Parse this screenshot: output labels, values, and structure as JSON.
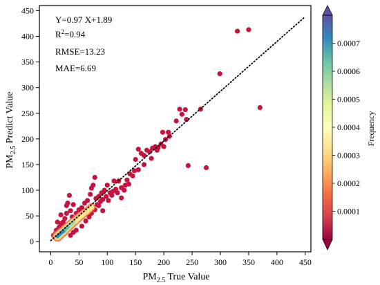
{
  "chart_data": {
    "type": "scatter",
    "xlabel": {
      "base": "PM",
      "sub": "2.5",
      "rest": " True Value"
    },
    "ylabel": {
      "base": "PM",
      "sub": "2.5",
      "rest": " Predict Value"
    },
    "xlim": [
      -20,
      460
    ],
    "ylim": [
      -20,
      460
    ],
    "xticks": [
      "0",
      "50",
      "100",
      "150",
      "200",
      "250",
      "300",
      "350",
      "400",
      "450"
    ],
    "yticks": [
      "0",
      "50",
      "100",
      "150",
      "200",
      "250",
      "300",
      "350",
      "400",
      "450"
    ],
    "annotations": {
      "equation": "Y=0.97 X+1.89",
      "r2_base": "R",
      "r2_sup": "2",
      "r2_rest": "=0.94",
      "rmse": "RMSE=13.23",
      "mae": "MAE=6.69"
    },
    "fit_line": {
      "slope": 0.97,
      "intercept": 1.89,
      "x_range": [
        0,
        450
      ],
      "style": "dotted"
    },
    "colorbar": {
      "label": "Frequency",
      "range": [
        0,
        0.0008
      ],
      "ticks": [
        "0.0001",
        "0.0002",
        "0.0003",
        "0.0004",
        "0.0005",
        "0.0006",
        "0.0007"
      ],
      "colormap": "Spectral"
    },
    "points": [
      {
        "x": 330,
        "y": 410
      },
      {
        "x": 350,
        "y": 413
      },
      {
        "x": 370,
        "y": 261
      },
      {
        "x": 299,
        "y": 327
      },
      {
        "x": 265,
        "y": 258
      },
      {
        "x": 243,
        "y": 148
      },
      {
        "x": 275,
        "y": 144
      },
      {
        "x": 222,
        "y": 235
      },
      {
        "x": 228,
        "y": 258
      },
      {
        "x": 238,
        "y": 257
      },
      {
        "x": 232,
        "y": 248
      },
      {
        "x": 240,
        "y": 238
      },
      {
        "x": 208,
        "y": 213
      },
      {
        "x": 198,
        "y": 213
      },
      {
        "x": 203,
        "y": 199
      },
      {
        "x": 200,
        "y": 185
      },
      {
        "x": 195,
        "y": 190
      },
      {
        "x": 190,
        "y": 183
      },
      {
        "x": 185,
        "y": 185
      },
      {
        "x": 180,
        "y": 182
      },
      {
        "x": 175,
        "y": 175
      },
      {
        "x": 170,
        "y": 178
      },
      {
        "x": 165,
        "y": 168
      },
      {
        "x": 160,
        "y": 172
      },
      {
        "x": 155,
        "y": 140
      },
      {
        "x": 150,
        "y": 160
      },
      {
        "x": 148,
        "y": 138
      },
      {
        "x": 145,
        "y": 128
      },
      {
        "x": 140,
        "y": 132
      },
      {
        "x": 135,
        "y": 120
      },
      {
        "x": 132,
        "y": 110
      },
      {
        "x": 130,
        "y": 100
      },
      {
        "x": 125,
        "y": 105
      },
      {
        "x": 120,
        "y": 118
      },
      {
        "x": 118,
        "y": 95
      },
      {
        "x": 115,
        "y": 102
      },
      {
        "x": 110,
        "y": 98
      },
      {
        "x": 108,
        "y": 90
      },
      {
        "x": 105,
        "y": 95
      },
      {
        "x": 100,
        "y": 110
      },
      {
        "x": 98,
        "y": 88
      },
      {
        "x": 95,
        "y": 100
      },
      {
        "x": 92,
        "y": 82
      },
      {
        "x": 90,
        "y": 95
      },
      {
        "x": 88,
        "y": 78
      },
      {
        "x": 85,
        "y": 88
      },
      {
        "x": 82,
        "y": 72
      },
      {
        "x": 80,
        "y": 84
      },
      {
        "x": 78,
        "y": 125
      },
      {
        "x": 75,
        "y": 110
      },
      {
        "x": 72,
        "y": 104
      },
      {
        "x": 70,
        "y": 92
      },
      {
        "x": 68,
        "y": 65
      },
      {
        "x": 65,
        "y": 80
      },
      {
        "x": 62,
        "y": 60
      },
      {
        "x": 60,
        "y": 75
      },
      {
        "x": 58,
        "y": 55
      },
      {
        "x": 55,
        "y": 66
      },
      {
        "x": 52,
        "y": 50
      },
      {
        "x": 50,
        "y": 62
      },
      {
        "x": 48,
        "y": 45
      },
      {
        "x": 45,
        "y": 55
      },
      {
        "x": 42,
        "y": 40
      },
      {
        "x": 40,
        "y": 72
      },
      {
        "x": 38,
        "y": 48
      },
      {
        "x": 35,
        "y": 60
      },
      {
        "x": 33,
        "y": 90
      },
      {
        "x": 30,
        "y": 75
      },
      {
        "x": 28,
        "y": 55
      },
      {
        "x": 25,
        "y": 45
      },
      {
        "x": 22,
        "y": 38
      },
      {
        "x": 20,
        "y": 30
      },
      {
        "x": 18,
        "y": 35
      },
      {
        "x": 15,
        "y": 28
      },
      {
        "x": 12,
        "y": 38
      },
      {
        "x": 10,
        "y": 22
      },
      {
        "x": 8,
        "y": 15
      },
      {
        "x": 5,
        "y": 12
      },
      {
        "x": 35,
        "y": 12
      },
      {
        "x": 45,
        "y": 22
      },
      {
        "x": 40,
        "y": 18
      },
      {
        "x": 55,
        "y": 30
      },
      {
        "x": 62,
        "y": 40
      },
      {
        "x": 68,
        "y": 48
      },
      {
        "x": 72,
        "y": 55
      },
      {
        "x": 78,
        "y": 62
      },
      {
        "x": 85,
        "y": 70
      },
      {
        "x": 92,
        "y": 60
      },
      {
        "x": 28,
        "y": 70
      },
      {
        "x": 18,
        "y": 52
      },
      {
        "x": 155,
        "y": 180
      },
      {
        "x": 165,
        "y": 150
      },
      {
        "x": 178,
        "y": 162
      },
      {
        "x": 188,
        "y": 178
      },
      {
        "x": 210,
        "y": 205
      },
      {
        "x": 125,
        "y": 85
      },
      {
        "x": 138,
        "y": 112
      },
      {
        "x": 112,
        "y": 118
      },
      {
        "x": 102,
        "y": 80
      }
    ],
    "density_core": [
      {
        "x": 12,
        "y": 10
      },
      {
        "x": 15,
        "y": 13
      },
      {
        "x": 18,
        "y": 16
      },
      {
        "x": 20,
        "y": 18
      },
      {
        "x": 23,
        "y": 20
      },
      {
        "x": 25,
        "y": 23
      },
      {
        "x": 28,
        "y": 26
      },
      {
        "x": 30,
        "y": 28
      },
      {
        "x": 33,
        "y": 31
      },
      {
        "x": 35,
        "y": 33
      },
      {
        "x": 38,
        "y": 36
      },
      {
        "x": 40,
        "y": 38
      },
      {
        "x": 43,
        "y": 40
      },
      {
        "x": 45,
        "y": 42
      },
      {
        "x": 48,
        "y": 45
      },
      {
        "x": 50,
        "y": 47
      },
      {
        "x": 53,
        "y": 50
      },
      {
        "x": 56,
        "y": 52
      },
      {
        "x": 60,
        "y": 56
      },
      {
        "x": 64,
        "y": 59
      },
      {
        "x": 68,
        "y": 63
      },
      {
        "x": 72,
        "y": 67
      }
    ]
  }
}
